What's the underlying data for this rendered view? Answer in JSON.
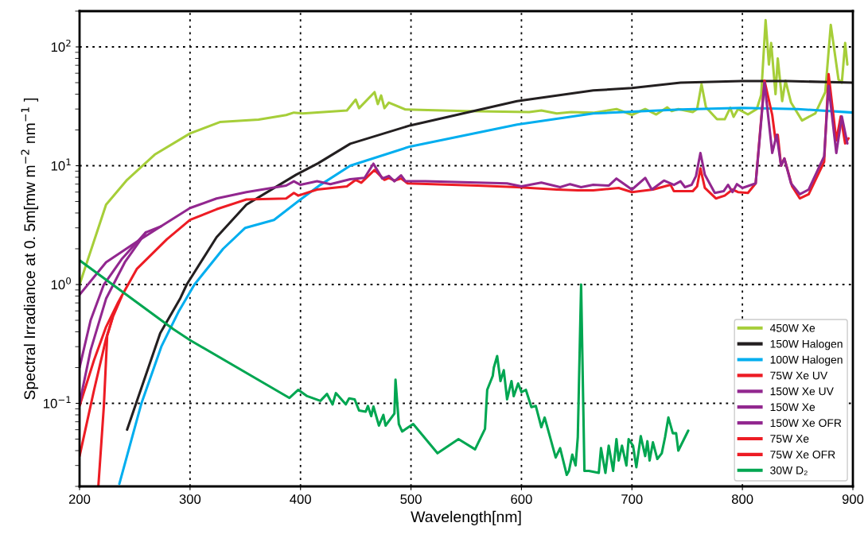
{
  "chart_data": {
    "type": "line",
    "xlabel": "Wavelength[nm]",
    "ylabel": "Spectral Irradiance at 0. 5m[mw m$^{−2}$ nm$^{−1}$ ]",
    "log": "y",
    "xlim": [
      200,
      900
    ],
    "xticks": [
      200,
      300,
      400,
      500,
      600,
      700,
      800,
      900
    ],
    "ylim": [
      0.02,
      200
    ],
    "yticks": [
      {
        "value": 0.1,
        "label": "10$^{−1}$"
      },
      {
        "value": 1,
        "label": "10$^{0}$"
      },
      {
        "value": 10,
        "label": "10$^{1}$"
      },
      {
        "value": 100,
        "label": "10$^{2}$"
      }
    ],
    "grid": true,
    "legend": "lower right",
    "line_style": "solid",
    "marker": "none",
    "series": [
      {
        "name": "450W Xe",
        "color": "#a6ce39",
        "x": [
          200,
          224,
          243,
          268,
          300,
          327,
          362,
          387,
          394,
          402,
          442,
          450,
          453,
          467,
          470,
          473,
          476,
          480,
          495,
          549,
          607,
          618,
          632,
          645,
          665,
          686,
          700,
          712,
          722,
          732,
          736,
          742,
          755,
          759,
          763,
          767,
          777,
          784,
          789,
          792,
          796,
          805,
          813,
          817,
          821,
          824,
          826,
          830,
          832,
          836,
          839,
          844,
          854,
          866,
          875,
          880,
          887,
          890,
          893,
          895
        ],
        "values": [
          1.0,
          4.7,
          7.6,
          12.4,
          18.7,
          23.3,
          24.4,
          26.7,
          28,
          27.5,
          29.2,
          36,
          30.5,
          41.6,
          33,
          39,
          30.5,
          34,
          29.7,
          28.8,
          28.3,
          29.2,
          27.5,
          28.3,
          27.9,
          30,
          26.8,
          30,
          27,
          31,
          28.8,
          30,
          28.3,
          30,
          48.5,
          31,
          24.6,
          24.6,
          30.7,
          25.8,
          30,
          27,
          30,
          39.4,
          168,
          71,
          108,
          40,
          80,
          35,
          52,
          34,
          24,
          27.6,
          41.6,
          153,
          53,
          50,
          108,
          71
        ]
      },
      {
        "name": "150W Halogen",
        "color": "#231f20",
        "x": [
          243,
          273,
          291,
          297,
          324,
          351,
          396,
          416,
          445,
          499,
          596,
          665,
          700,
          744,
          799,
          841,
          900
        ],
        "values": [
          0.06,
          0.39,
          0.76,
          1.0,
          2.5,
          4.7,
          8.4,
          10.5,
          15.3,
          21.8,
          35,
          43,
          45,
          50,
          51.6,
          51.6,
          50
        ]
      },
      {
        "name": "100W Halogen",
        "color": "#00aeef",
        "x": [
          236,
          256,
          274,
          290,
          304,
          330,
          350,
          376,
          400,
          418,
          445,
          499,
          596,
          665,
          744,
          799,
          850,
          900
        ],
        "values": [
          0.021,
          0.1,
          0.3,
          0.6,
          1.0,
          2.0,
          3.0,
          3.5,
          5.2,
          6.9,
          10.0,
          14.5,
          22.2,
          27.5,
          29.7,
          30.7,
          30,
          28
        ]
      },
      {
        "name": "75W Xe UV",
        "color": "#ed1c24",
        "x": [
          200,
          213,
          224,
          235,
          252,
          279,
          300,
          324,
          351,
          387,
          394,
          398,
          415,
          442,
          450,
          455,
          467,
          476,
          480,
          485,
          491,
          497,
          560,
          596,
          632,
          651,
          665,
          688,
          700,
          719,
          735,
          738,
          755,
          759,
          762,
          766,
          776,
          784,
          791,
          796,
          805,
          812,
          820,
          827,
          830,
          832,
          835,
          838,
          845,
          852,
          860,
          874,
          878,
          885,
          889,
          893,
          896
        ],
        "values": [
          0.095,
          0.23,
          0.44,
          0.71,
          1.36,
          2.4,
          3.5,
          4.3,
          5.2,
          5.3,
          5.9,
          5.6,
          6.3,
          6.7,
          7.6,
          7.2,
          9.2,
          7.6,
          7.9,
          7.5,
          7.8,
          7.1,
          6.8,
          6.6,
          6.3,
          6.2,
          6.2,
          6.5,
          6.0,
          6.3,
          6.9,
          6.1,
          6.1,
          6.7,
          9.5,
          6.5,
          5.3,
          5.6,
          6.3,
          6.0,
          5.9,
          7.1,
          52,
          26.7,
          16.3,
          18.2,
          10,
          11.5,
          6.7,
          5.3,
          5.75,
          10.8,
          59,
          16.3,
          26,
          15.4,
          17
        ]
      },
      {
        "name": "150W Xe UV",
        "color": "#92278f",
        "x": [
          200,
          224,
          252,
          274,
          300,
          324,
          351,
          387,
          394,
          400,
          415,
          427,
          445,
          458,
          466,
          474,
          480,
          485,
          491,
          495,
          513,
          587,
          600,
          618,
          635,
          644,
          654,
          665,
          679,
          686,
          700,
          712,
          718,
          729,
          738,
          744,
          748,
          754,
          758,
          762,
          766,
          775,
          783,
          787,
          791,
          795,
          800,
          812,
          815,
          820,
          827,
          831,
          835,
          838,
          844,
          852,
          860,
          874,
          878,
          885,
          890,
          895
        ],
        "values": [
          0.82,
          1.54,
          2.3,
          3.1,
          4.4,
          5.3,
          6.0,
          6.8,
          7.4,
          6.9,
          7.4,
          7.0,
          7.7,
          7.9,
          10.4,
          7.8,
          8.2,
          7.4,
          8.3,
          7.4,
          7.4,
          7.1,
          6.7,
          7.2,
          6.6,
          7.0,
          6.6,
          6.9,
          6.8,
          7.8,
          6.3,
          7.9,
          6.3,
          7.5,
          6.9,
          7.4,
          6.6,
          6.9,
          8.2,
          12.8,
          8.4,
          5.9,
          6.1,
          6.9,
          6.0,
          7.0,
          6.5,
          7.1,
          14.5,
          50,
          12.8,
          18.2,
          10,
          11.5,
          7.1,
          5.75,
          6.3,
          12,
          47,
          12.8,
          26,
          15.4
        ]
      },
      {
        "name": "150W Xe",
        "color": "#92278f",
        "x": [
          200,
          210,
          222,
          238,
          260,
          274
        ],
        "values": [
          0.2,
          0.5,
          1.0,
          1.63,
          2.75,
          3.1
        ]
      },
      {
        "name": "150W Xe OFR",
        "color": "#92278f",
        "x": [
          200,
          210,
          224,
          241,
          260
        ],
        "values": [
          0.1,
          0.28,
          0.76,
          1.54,
          2.75
        ]
      },
      {
        "name": "75W Xe",
        "color": "#ed1c24",
        "x": [
          200,
          213,
          224,
          230,
          238
        ],
        "values": [
          0.036,
          0.128,
          0.35,
          0.53,
          0.79
        ]
      },
      {
        "name": "75W Xe OFR",
        "color": "#ed1c24",
        "x": [
          217,
          222,
          225,
          230
        ],
        "values": [
          0.02,
          0.095,
          0.37,
          0.53
        ]
      },
      {
        "name": "30W D₂",
        "color": "#00a651",
        "x": [
          200,
          285,
          300,
          390,
          398,
          406,
          418,
          424,
          429,
          432,
          441,
          444,
          449,
          453,
          459,
          461,
          464,
          466,
          471,
          475,
          477,
          485,
          486,
          489,
          492,
          502,
          524,
          543,
          558,
          567,
          569,
          574,
          575,
          578,
          581,
          584,
          587,
          591,
          593,
          597,
          600,
          604,
          609,
          613,
          618,
          621,
          631,
          635,
          641,
          643,
          646,
          649,
          651,
          654,
          657,
          661,
          670,
          672,
          676,
          679,
          683,
          686,
          688,
          691,
          695,
          697,
          701,
          704,
          708,
          712,
          714,
          716,
          719,
          723,
          727,
          730,
          733,
          737,
          740,
          742,
          751
        ],
        "values": [
          1.6,
          0.42,
          0.34,
          0.111,
          0.13,
          0.115,
          0.105,
          0.12,
          0.098,
          0.122,
          0.098,
          0.11,
          0.108,
          0.087,
          0.085,
          0.095,
          0.078,
          0.094,
          0.065,
          0.08,
          0.065,
          0.082,
          0.158,
          0.067,
          0.058,
          0.067,
          0.038,
          0.05,
          0.041,
          0.061,
          0.13,
          0.17,
          0.2,
          0.25,
          0.154,
          0.19,
          0.108,
          0.154,
          0.115,
          0.147,
          0.124,
          0.13,
          0.093,
          0.095,
          0.063,
          0.076,
          0.035,
          0.042,
          0.025,
          0.027,
          0.037,
          0.03,
          0.052,
          1.0,
          0.027,
          0.027,
          0.026,
          0.042,
          0.026,
          0.044,
          0.027,
          0.05,
          0.033,
          0.044,
          0.03,
          0.05,
          0.044,
          0.029,
          0.053,
          0.036,
          0.048,
          0.033,
          0.047,
          0.034,
          0.038,
          0.052,
          0.076,
          0.056,
          0.056,
          0.04,
          0.059
        ]
      }
    ]
  }
}
